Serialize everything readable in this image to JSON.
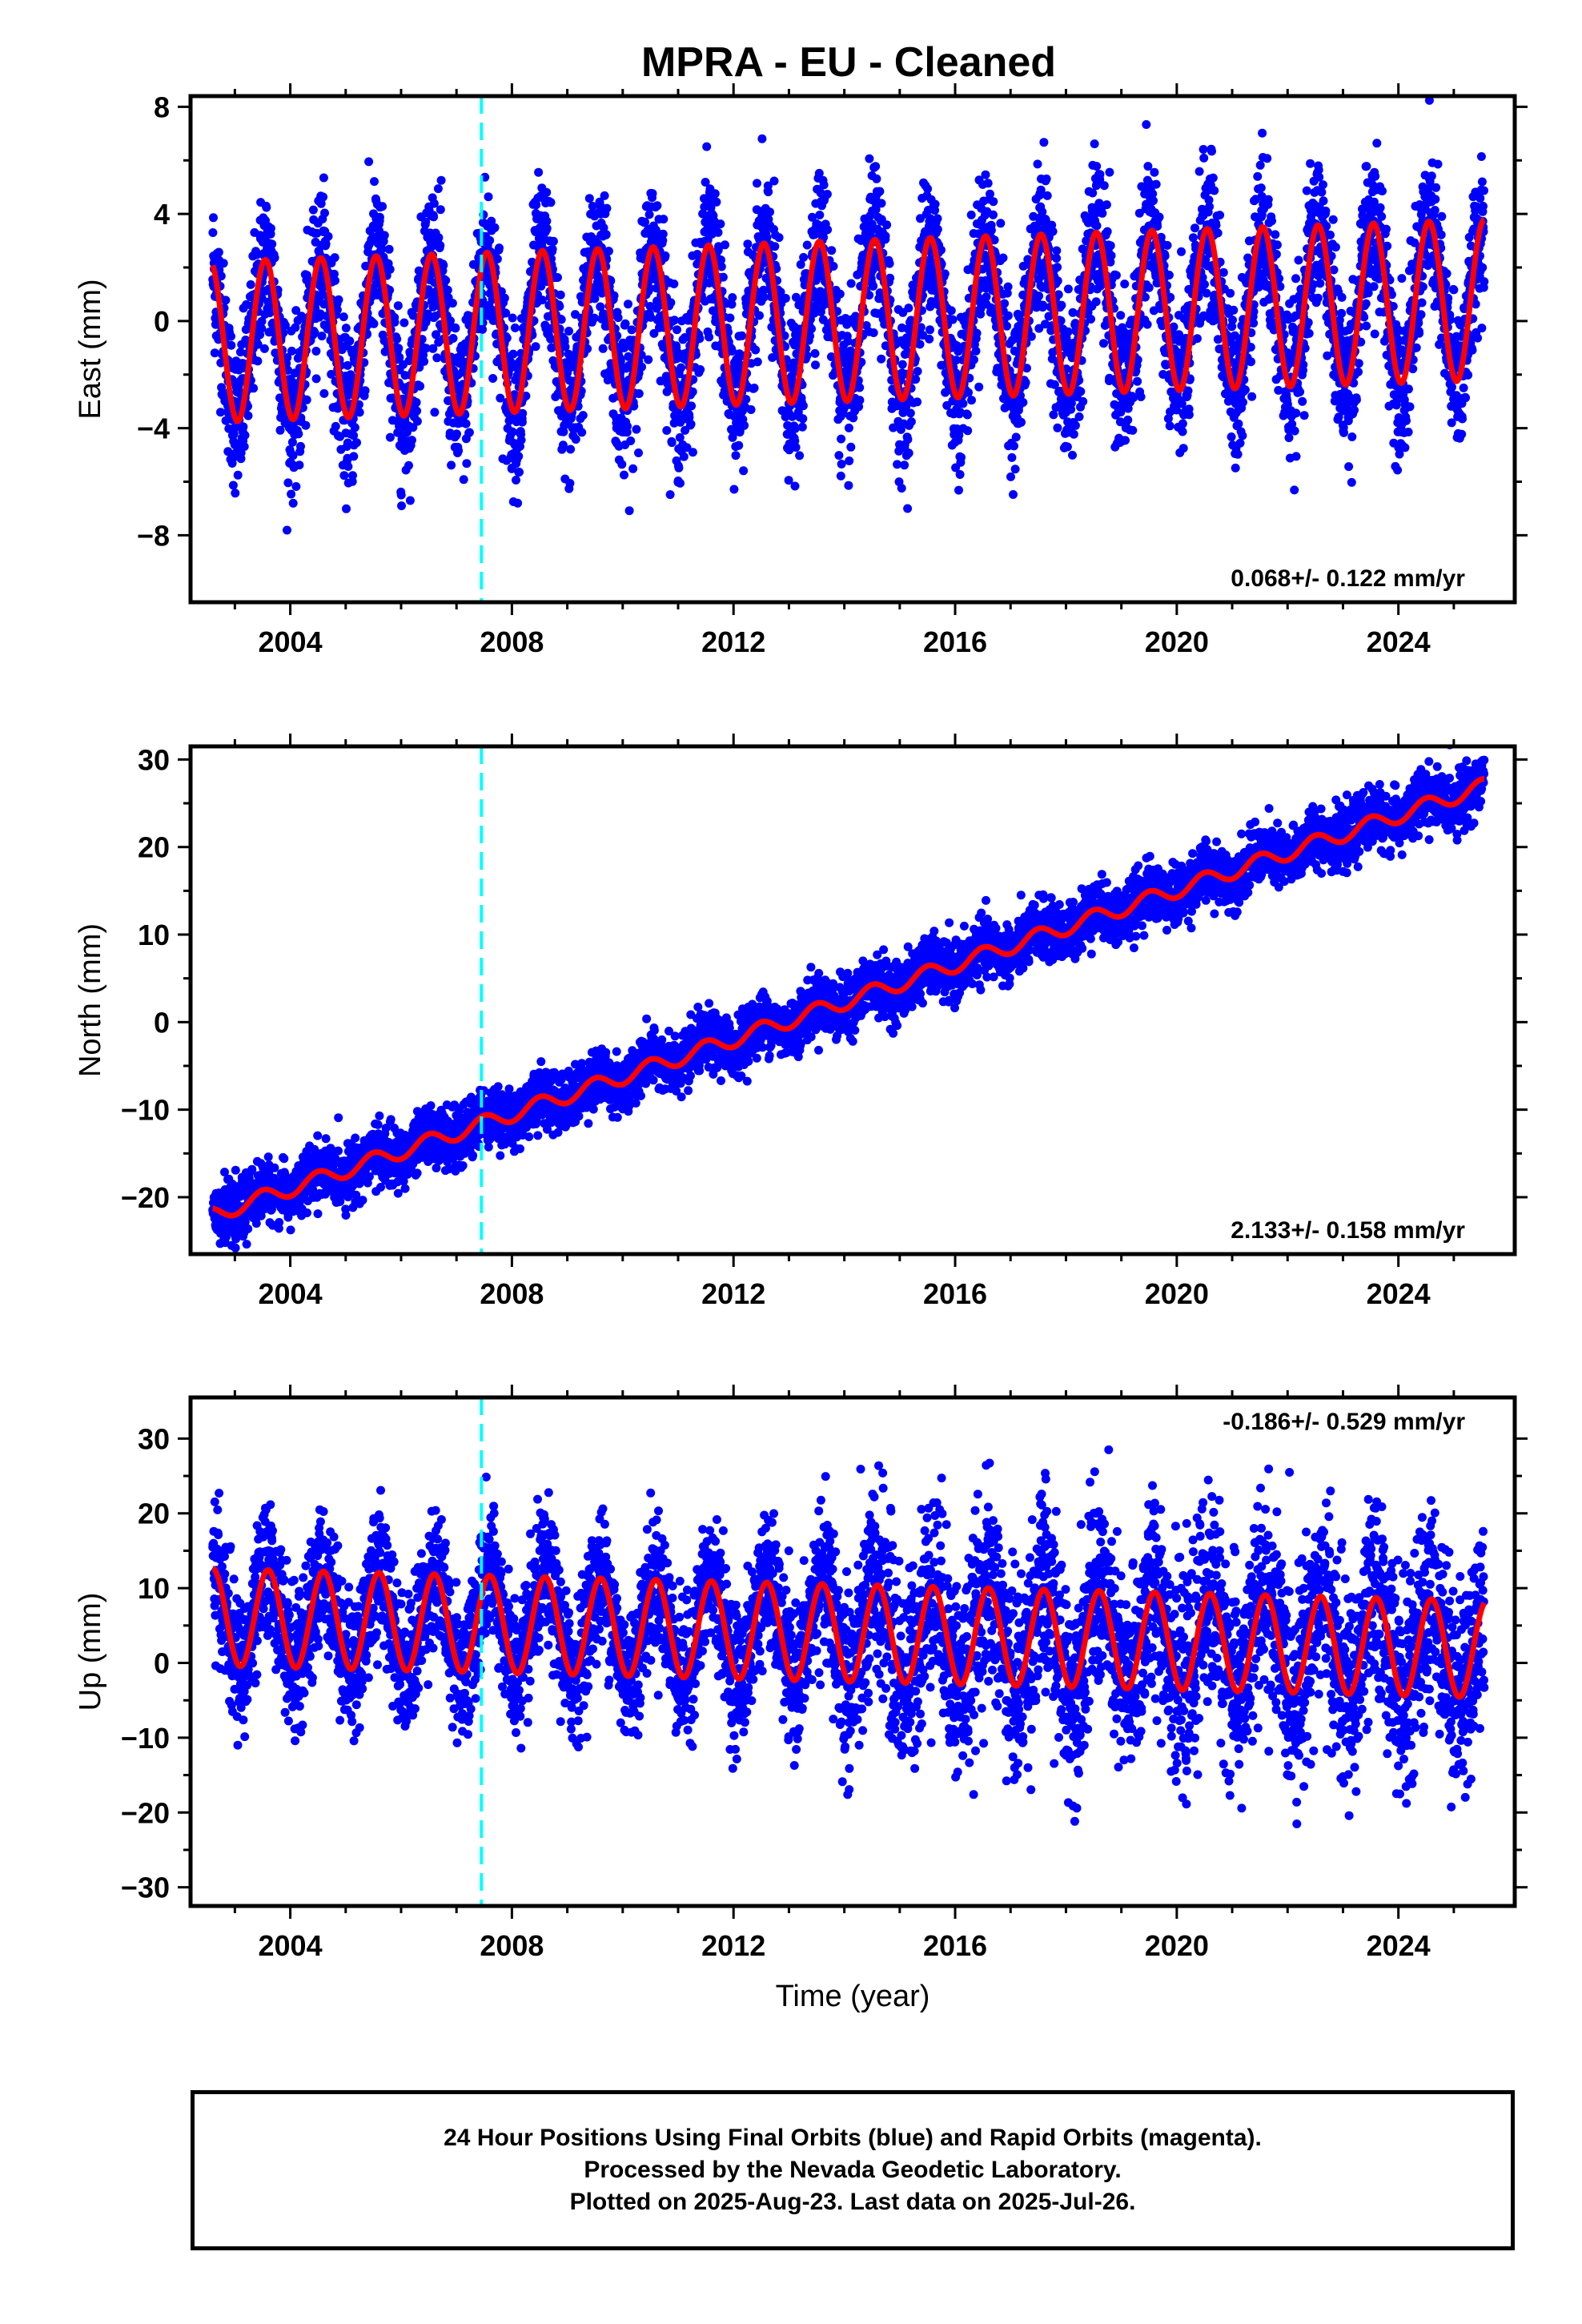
{
  "title": "MPRA  - EU - Cleaned",
  "xlabel": "Time (year)",
  "colors": {
    "data": "#0000ff",
    "model": "#ff0000",
    "marker": "#00ffff",
    "frame": "#000000"
  },
  "footer": {
    "lines": [
      "24 Hour Positions Using Final Orbits (blue) and Rapid Orbits (magenta).",
      "Processed by the Nevada Geodetic Laboratory.",
      "Plotted on 2025-Aug-23. Last data on 2025-Jul-26."
    ]
  },
  "chart_data": [
    {
      "type": "scatter",
      "component": "east",
      "ylabel": "East (mm)",
      "xlim": [
        2002.2,
        2026.1
      ],
      "ylim": [
        -10.5,
        8.4
      ],
      "xticks": [
        2004,
        2008,
        2012,
        2016,
        2020,
        2024
      ],
      "yticks": [
        -8,
        -4,
        0,
        4,
        8
      ],
      "yticklabels": [
        "−8",
        "−4",
        "0",
        "4",
        "8"
      ],
      "rate_label": "0.068+/- 0.122 mm/yr",
      "rate_position": "bottom-right",
      "marker_line_x": 2007.45,
      "series": [
        {
          "kind": "points",
          "x_range": [
            2002.6,
            2025.55
          ],
          "trend_mm_per_yr": 0.068,
          "offset_mm": 0.0,
          "annual_amplitude_mm": 2.9,
          "annual_phase_peak_year_fraction": 0.55,
          "scatter_sd_mm": 1.4
        },
        {
          "kind": "model",
          "x_range": [
            2002.6,
            2025.55
          ],
          "trend_mm_per_yr": 0.068,
          "offset_mm": 0.0,
          "annual_amplitude_mm": 3.0,
          "annual_phase_peak_year_fraction": 0.55
        }
      ]
    },
    {
      "type": "scatter",
      "component": "north",
      "ylabel": "North (mm)",
      "xlim": [
        2002.2,
        2026.1
      ],
      "ylim": [
        -26.5,
        31.5
      ],
      "xticks": [
        2004,
        2008,
        2012,
        2016,
        2020,
        2024
      ],
      "yticks": [
        -20,
        -10,
        0,
        10,
        20,
        30
      ],
      "yticklabels": [
        "−20",
        "−10",
        "0",
        "10",
        "20",
        "30"
      ],
      "rate_label": "2.133+/- 0.158 mm/yr",
      "rate_position": "bottom-right",
      "marker_line_x": 2007.45,
      "series": [
        {
          "kind": "points",
          "x_range": [
            2002.6,
            2025.55
          ],
          "trend_mm_per_yr": 2.133,
          "offset_mm": -22.0,
          "annual_amplitude_mm": 0.9,
          "annual_phase_peak_year_fraction": 0.5,
          "scatter_sd_mm": 1.6
        },
        {
          "kind": "model",
          "x_range": [
            2002.6,
            2025.55
          ],
          "trend_mm_per_yr": 2.133,
          "offset_mm": -22.0,
          "annual_amplitude_mm": 0.9,
          "annual_phase_peak_year_fraction": 0.5
        }
      ]
    },
    {
      "type": "scatter",
      "component": "up",
      "ylabel": "Up (mm)",
      "xlim": [
        2002.2,
        2026.1
      ],
      "ylim": [
        -32.5,
        35.5
      ],
      "xticks": [
        2004,
        2008,
        2012,
        2016,
        2020,
        2024
      ],
      "yticks": [
        -30,
        -20,
        -10,
        0,
        10,
        20,
        30
      ],
      "yticklabels": [
        "−30",
        "−20",
        "−10",
        "0",
        "10",
        "20",
        "30"
      ],
      "rate_label": "-0.186+/- 0.529 mm/yr",
      "rate_position": "top-right",
      "marker_line_x": 2007.45,
      "series": [
        {
          "kind": "points",
          "x_range": [
            2002.6,
            2025.55
          ],
          "trend_mm_per_yr": -0.186,
          "offset_mm": 4.0,
          "annual_amplitude_mm": 6.5,
          "annual_phase_peak_year_fraction": 0.6,
          "scatter_sd_mm": 4.5
        },
        {
          "kind": "model",
          "x_range": [
            2002.6,
            2025.55
          ],
          "trend_mm_per_yr": -0.186,
          "offset_mm": 4.0,
          "annual_amplitude_mm": 6.5,
          "annual_phase_peak_year_fraction": 0.6
        }
      ]
    }
  ]
}
